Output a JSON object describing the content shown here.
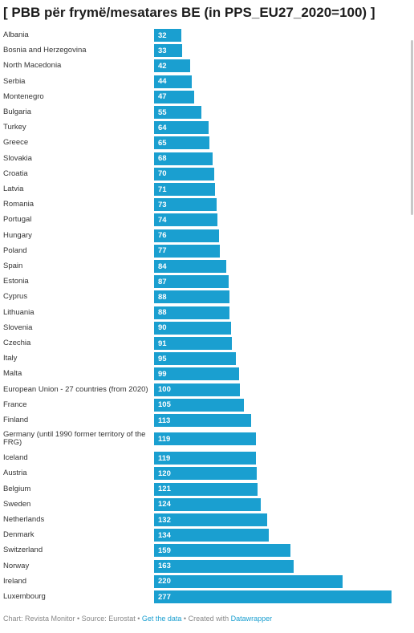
{
  "title": "[ PBB për frymë/mesatares BE (in PPS_EU27_2020=100) ]",
  "chart_data": {
    "type": "bar",
    "orientation": "horizontal",
    "title": "[ PBB për frymë/mesatares BE (in PPS_EU27_2020=100) ]",
    "categories": [
      "Albania",
      "Bosnia and Herzegovina",
      "North Macedonia",
      "Serbia",
      "Montenegro",
      "Bulgaria",
      "Turkey",
      "Greece",
      "Slovakia",
      "Croatia",
      "Latvia",
      "Romania",
      "Portugal",
      "Hungary",
      "Poland",
      "Spain",
      "Estonia",
      "Cyprus",
      "Lithuania",
      "Slovenia",
      "Czechia",
      "Italy",
      "Malta",
      "European Union - 27 countries (from 2020)",
      "France",
      "Finland",
      "Germany (until 1990 former territory of the FRG)",
      "Iceland",
      "Austria",
      "Belgium",
      "Sweden",
      "Netherlands",
      "Denmark",
      "Switzerland",
      "Norway",
      "Ireland",
      "Luxembourg"
    ],
    "values": [
      32,
      33,
      42,
      44,
      47,
      55,
      64,
      65,
      68,
      70,
      71,
      73,
      74,
      76,
      77,
      84,
      87,
      88,
      88,
      90,
      91,
      95,
      99,
      100,
      105,
      113,
      119,
      119,
      120,
      121,
      124,
      132,
      134,
      159,
      163,
      220,
      277
    ],
    "xlim": [
      0,
      277
    ],
    "bar_color": "#1a9fd0",
    "grid": false
  },
  "footer": {
    "prefix": "Chart: Revista Monitor • Source: Eurostat • ",
    "get_data": "Get the data",
    "sep": " • Created with ",
    "datawrapper": "Datawrapper"
  }
}
